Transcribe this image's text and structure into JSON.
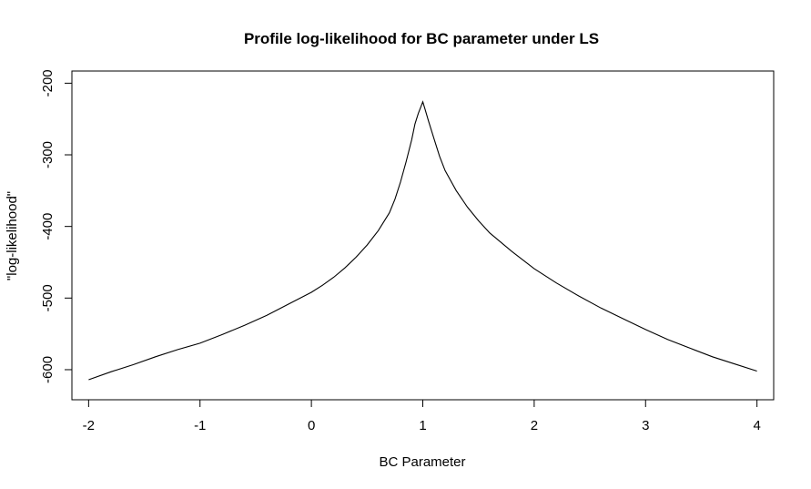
{
  "chart_data": {
    "type": "line",
    "title": "Profile log-likelihood for BC parameter under LS",
    "xlabel": "BC Parameter",
    "ylabel": "\"log-likelihood\"",
    "xlim": [
      -2.15,
      4.15
    ],
    "ylim": [
      -642,
      -183
    ],
    "xticks": [
      -2,
      -1,
      0,
      1,
      2,
      3,
      4
    ],
    "yticks": [
      -600,
      -500,
      -400,
      -300,
      -200
    ],
    "x_tick_labels": [
      "-2",
      "-1",
      "0",
      "1",
      "2",
      "3",
      "4"
    ],
    "y_tick_labels": [
      "-600",
      "-500",
      "-400",
      "-300",
      "-200"
    ],
    "grid": false,
    "legend": "none",
    "line_color": "#000000",
    "series": [
      {
        "x": [
          -2.0,
          -1.8,
          -1.6,
          -1.4,
          -1.2,
          -1.0,
          -0.8,
          -0.6,
          -0.4,
          -0.2,
          0.0,
          0.1,
          0.2,
          0.3,
          0.4,
          0.5,
          0.6,
          0.7,
          0.75,
          0.8,
          0.85,
          0.9,
          0.93,
          0.96,
          0.98,
          1.0,
          1.02,
          1.05,
          1.1,
          1.15,
          1.2,
          1.3,
          1.4,
          1.5,
          1.6,
          1.8,
          2.0,
          2.2,
          2.4,
          2.6,
          2.8,
          3.0,
          3.2,
          3.4,
          3.6,
          3.8,
          4.0
        ],
        "y": [
          -614,
          -603,
          -593,
          -582,
          -572,
          -563,
          -551,
          -538,
          -524,
          -508,
          -492,
          -482,
          -471,
          -458,
          -443,
          -426,
          -406,
          -381,
          -362,
          -338,
          -310,
          -279,
          -257,
          -242,
          -234,
          -226,
          -236,
          -252,
          -277,
          -302,
          -322,
          -350,
          -373,
          -392,
          -409,
          -435,
          -459,
          -479,
          -497,
          -514,
          -529,
          -544,
          -558,
          -570,
          -582,
          -592,
          -602
        ]
      }
    ]
  }
}
